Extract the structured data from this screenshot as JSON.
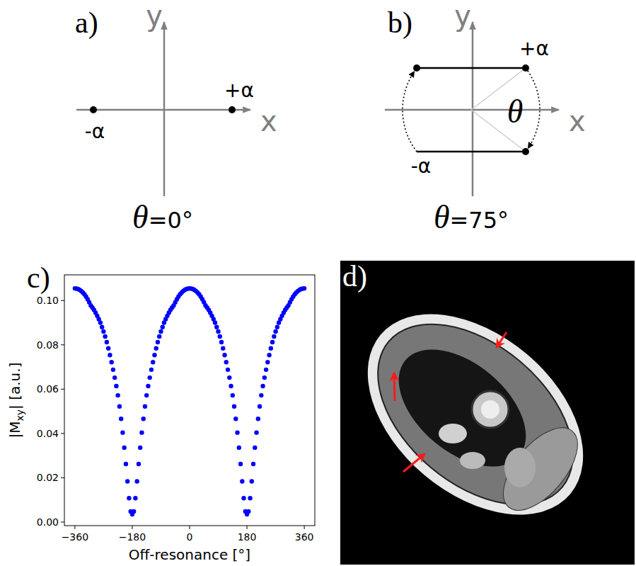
{
  "diagrams": [
    {
      "panel": "a)",
      "x_axis_label": "x",
      "y_axis_label": "y",
      "plus_label": "+α",
      "minus_label": "-α",
      "theta_symbol": "θ",
      "theta": {
        "value": 0,
        "label": "=0°"
      }
    },
    {
      "panel": "b)",
      "x_axis_label": "x",
      "y_axis_label": "y",
      "plus_label": "+α",
      "minus_label": "-α",
      "theta_symbol": "θ",
      "angle_label": "θ",
      "theta": {
        "value": 75,
        "label": "=75°"
      }
    }
  ],
  "chart_data": {
    "type": "scatter",
    "panel": "c)",
    "x_label": "Off-resonance [°]",
    "y_label": "|Mxy| [a.u.]",
    "y_label_subscript": "xy",
    "color": "#0000ff",
    "marker": "circle",
    "grid": false,
    "xlim": [
      -393,
      393
    ],
    "ylim": [
      -0.0016,
      0.1116
    ],
    "xticks": [
      {
        "value": -360,
        "label": "−360"
      },
      {
        "value": -180,
        "label": "−180"
      },
      0,
      180,
      360
    ],
    "yticks": [
      {
        "value": 0,
        "label": "0.00"
      },
      {
        "value": 0.02,
        "label": "0.02"
      },
      {
        "value": 0.04,
        "label": "0.04"
      },
      {
        "value": 0.06,
        "label": "0.06"
      },
      {
        "value": 0.08,
        "label": "0.08"
      },
      {
        "value": 0.1,
        "label": "0.10"
      }
    ],
    "x": [
      -360,
      -355,
      -350,
      -345,
      -340,
      -335,
      -330,
      -325,
      -320,
      -315,
      -310,
      -305,
      -300,
      -295,
      -290,
      -285,
      -280,
      -275,
      -270,
      -265,
      -260,
      -255,
      -250,
      -245,
      -240,
      -235,
      -230,
      -225,
      -220,
      -215,
      -210,
      -205,
      -200,
      -195,
      -190,
      -185,
      -180,
      -175,
      -170,
      -165,
      -160,
      -155,
      -150,
      -145,
      -140,
      -135,
      -130,
      -125,
      -120,
      -115,
      -110,
      -105,
      -100,
      -95,
      -90,
      -85,
      -80,
      -75,
      -70,
      -65,
      -60,
      -55,
      -50,
      -45,
      -40,
      -35,
      -30,
      -25,
      -20,
      -15,
      -10,
      -5,
      0,
      5,
      10,
      15,
      20,
      25,
      30,
      35,
      40,
      45,
      50,
      55,
      60,
      65,
      70,
      75,
      80,
      85,
      90,
      95,
      100,
      105,
      110,
      115,
      120,
      125,
      130,
      135,
      140,
      145,
      150,
      155,
      160,
      165,
      170,
      175,
      180,
      185,
      190,
      195,
      200,
      205,
      210,
      215,
      220,
      225,
      230,
      235,
      240,
      245,
      250,
      255,
      260,
      265,
      270,
      275,
      280,
      285,
      290,
      295,
      300,
      305,
      310,
      315,
      320,
      325,
      330,
      335,
      340,
      345,
      350,
      355,
      360
    ],
    "values": [
      0.1055,
      0.1054,
      0.1052,
      0.1048,
      0.1043,
      0.1036,
      0.1028,
      0.1018,
      0.1006,
      0.0992,
      0.0978,
      0.0968,
      0.0958,
      0.0945,
      0.0931,
      0.0916,
      0.09,
      0.088,
      0.086,
      0.0838,
      0.0812,
      0.0784,
      0.0754,
      0.0722,
      0.0688,
      0.0652,
      0.0614,
      0.0572,
      0.0522,
      0.0466,
      0.0404,
      0.0336,
      0.0262,
      0.0184,
      0.0108,
      0.0048,
      0.0035,
      0.0048,
      0.0108,
      0.0184,
      0.0262,
      0.0336,
      0.0404,
      0.0466,
      0.0522,
      0.0572,
      0.0614,
      0.0652,
      0.0688,
      0.0722,
      0.0754,
      0.0784,
      0.0812,
      0.0838,
      0.086,
      0.088,
      0.09,
      0.0916,
      0.0931,
      0.0945,
      0.0958,
      0.0968,
      0.0978,
      0.0992,
      0.1006,
      0.1018,
      0.1028,
      0.1036,
      0.1043,
      0.1048,
      0.1052,
      0.1054,
      0.1055,
      0.1054,
      0.1052,
      0.1048,
      0.1043,
      0.1036,
      0.1028,
      0.1018,
      0.1006,
      0.0992,
      0.0978,
      0.0968,
      0.0958,
      0.0945,
      0.0931,
      0.0916,
      0.09,
      0.088,
      0.086,
      0.0838,
      0.0812,
      0.0784,
      0.0754,
      0.0722,
      0.0688,
      0.0652,
      0.0614,
      0.0572,
      0.0522,
      0.0466,
      0.0404,
      0.0336,
      0.0262,
      0.0184,
      0.0108,
      0.0048,
      0.0035,
      0.0048,
      0.0108,
      0.0184,
      0.0262,
      0.0336,
      0.0404,
      0.0466,
      0.0522,
      0.0572,
      0.0614,
      0.0652,
      0.0688,
      0.0722,
      0.0754,
      0.0784,
      0.0812,
      0.0838,
      0.086,
      0.088,
      0.09,
      0.0916,
      0.0931,
      0.0945,
      0.0958,
      0.0968,
      0.0978,
      0.0992,
      0.1006,
      0.1018,
      0.1028,
      0.1036,
      0.1043,
      0.1048,
      0.1052,
      0.1054,
      0.1055
    ]
  },
  "image": {
    "panel": "d)"
  }
}
